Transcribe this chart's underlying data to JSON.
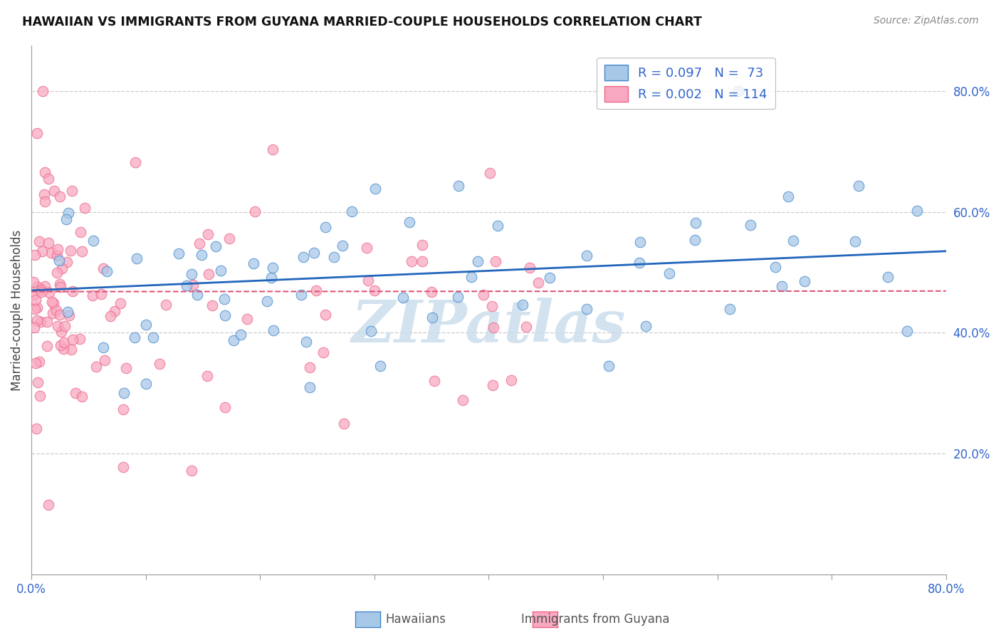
{
  "title": "HAWAIIAN VS IMMIGRANTS FROM GUYANA MARRIED-COUPLE HOUSEHOLDS CORRELATION CHART",
  "source": "Source: ZipAtlas.com",
  "ylabel": "Married-couple Households",
  "color_hawaiian_fill": "#a8c8e8",
  "color_hawaiian_edge": "#4488cc",
  "color_guyana_fill": "#f8a8c0",
  "color_guyana_edge": "#ee6688",
  "color_hawaiian_line": "#2266bb",
  "color_guyana_line": "#dd5577",
  "color_text_blue": "#3366cc",
  "color_grid": "#cccccc",
  "color_axis": "#999999",
  "watermark": "ZIPatlas",
  "watermark_color": "#ccdded",
  "xlim": [
    0.0,
    0.8
  ],
  "ylim": [
    0.0,
    0.875
  ],
  "yticks": [
    0.2,
    0.4,
    0.6,
    0.8
  ],
  "xtick_labels_show": [
    "0.0%",
    "80.0%"
  ],
  "legend_R1": "R = 0.097",
  "legend_N1": "N =  73",
  "legend_R2": "R = 0.002",
  "legend_N2": "N = 114",
  "legend_label1": "Hawaiians",
  "legend_label2": "Immigrants from Guyana",
  "hawaiian_trend_x": [
    0.0,
    0.8
  ],
  "hawaiian_trend_y": [
    0.47,
    0.535
  ],
  "guyana_trend_x": [
    0.0,
    0.8
  ],
  "guyana_trend_y": [
    0.468,
    0.469
  ]
}
